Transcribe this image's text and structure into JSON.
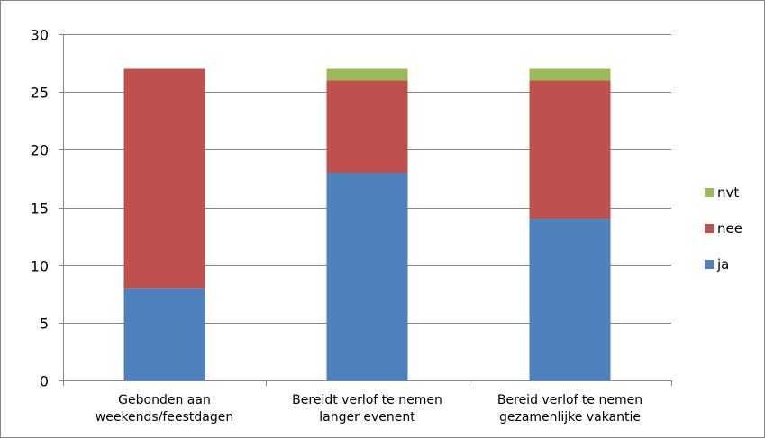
{
  "chart_data": {
    "type": "bar",
    "stacked": true,
    "categories": [
      [
        "Gebonden aan",
        "weekends/feestdagen"
      ],
      [
        "Bereidt verlof te nemen",
        "langer evenent"
      ],
      [
        "Bereid verlof te nemen",
        "gezamenlijke vakantie"
      ]
    ],
    "series": [
      {
        "name": "ja",
        "color": "#4F81BD",
        "values": [
          8,
          18,
          14
        ]
      },
      {
        "name": "nee",
        "color": "#C0504D",
        "values": [
          19,
          8,
          12
        ]
      },
      {
        "name": "nvt",
        "color": "#9BBB59",
        "values": [
          0,
          1,
          1
        ]
      }
    ],
    "ylim": [
      0,
      30
    ],
    "yticks": [
      0,
      5,
      10,
      15,
      20,
      25,
      30
    ],
    "grid": true,
    "legend": {
      "position": "right",
      "order": [
        "nvt",
        "nee",
        "ja"
      ]
    }
  }
}
